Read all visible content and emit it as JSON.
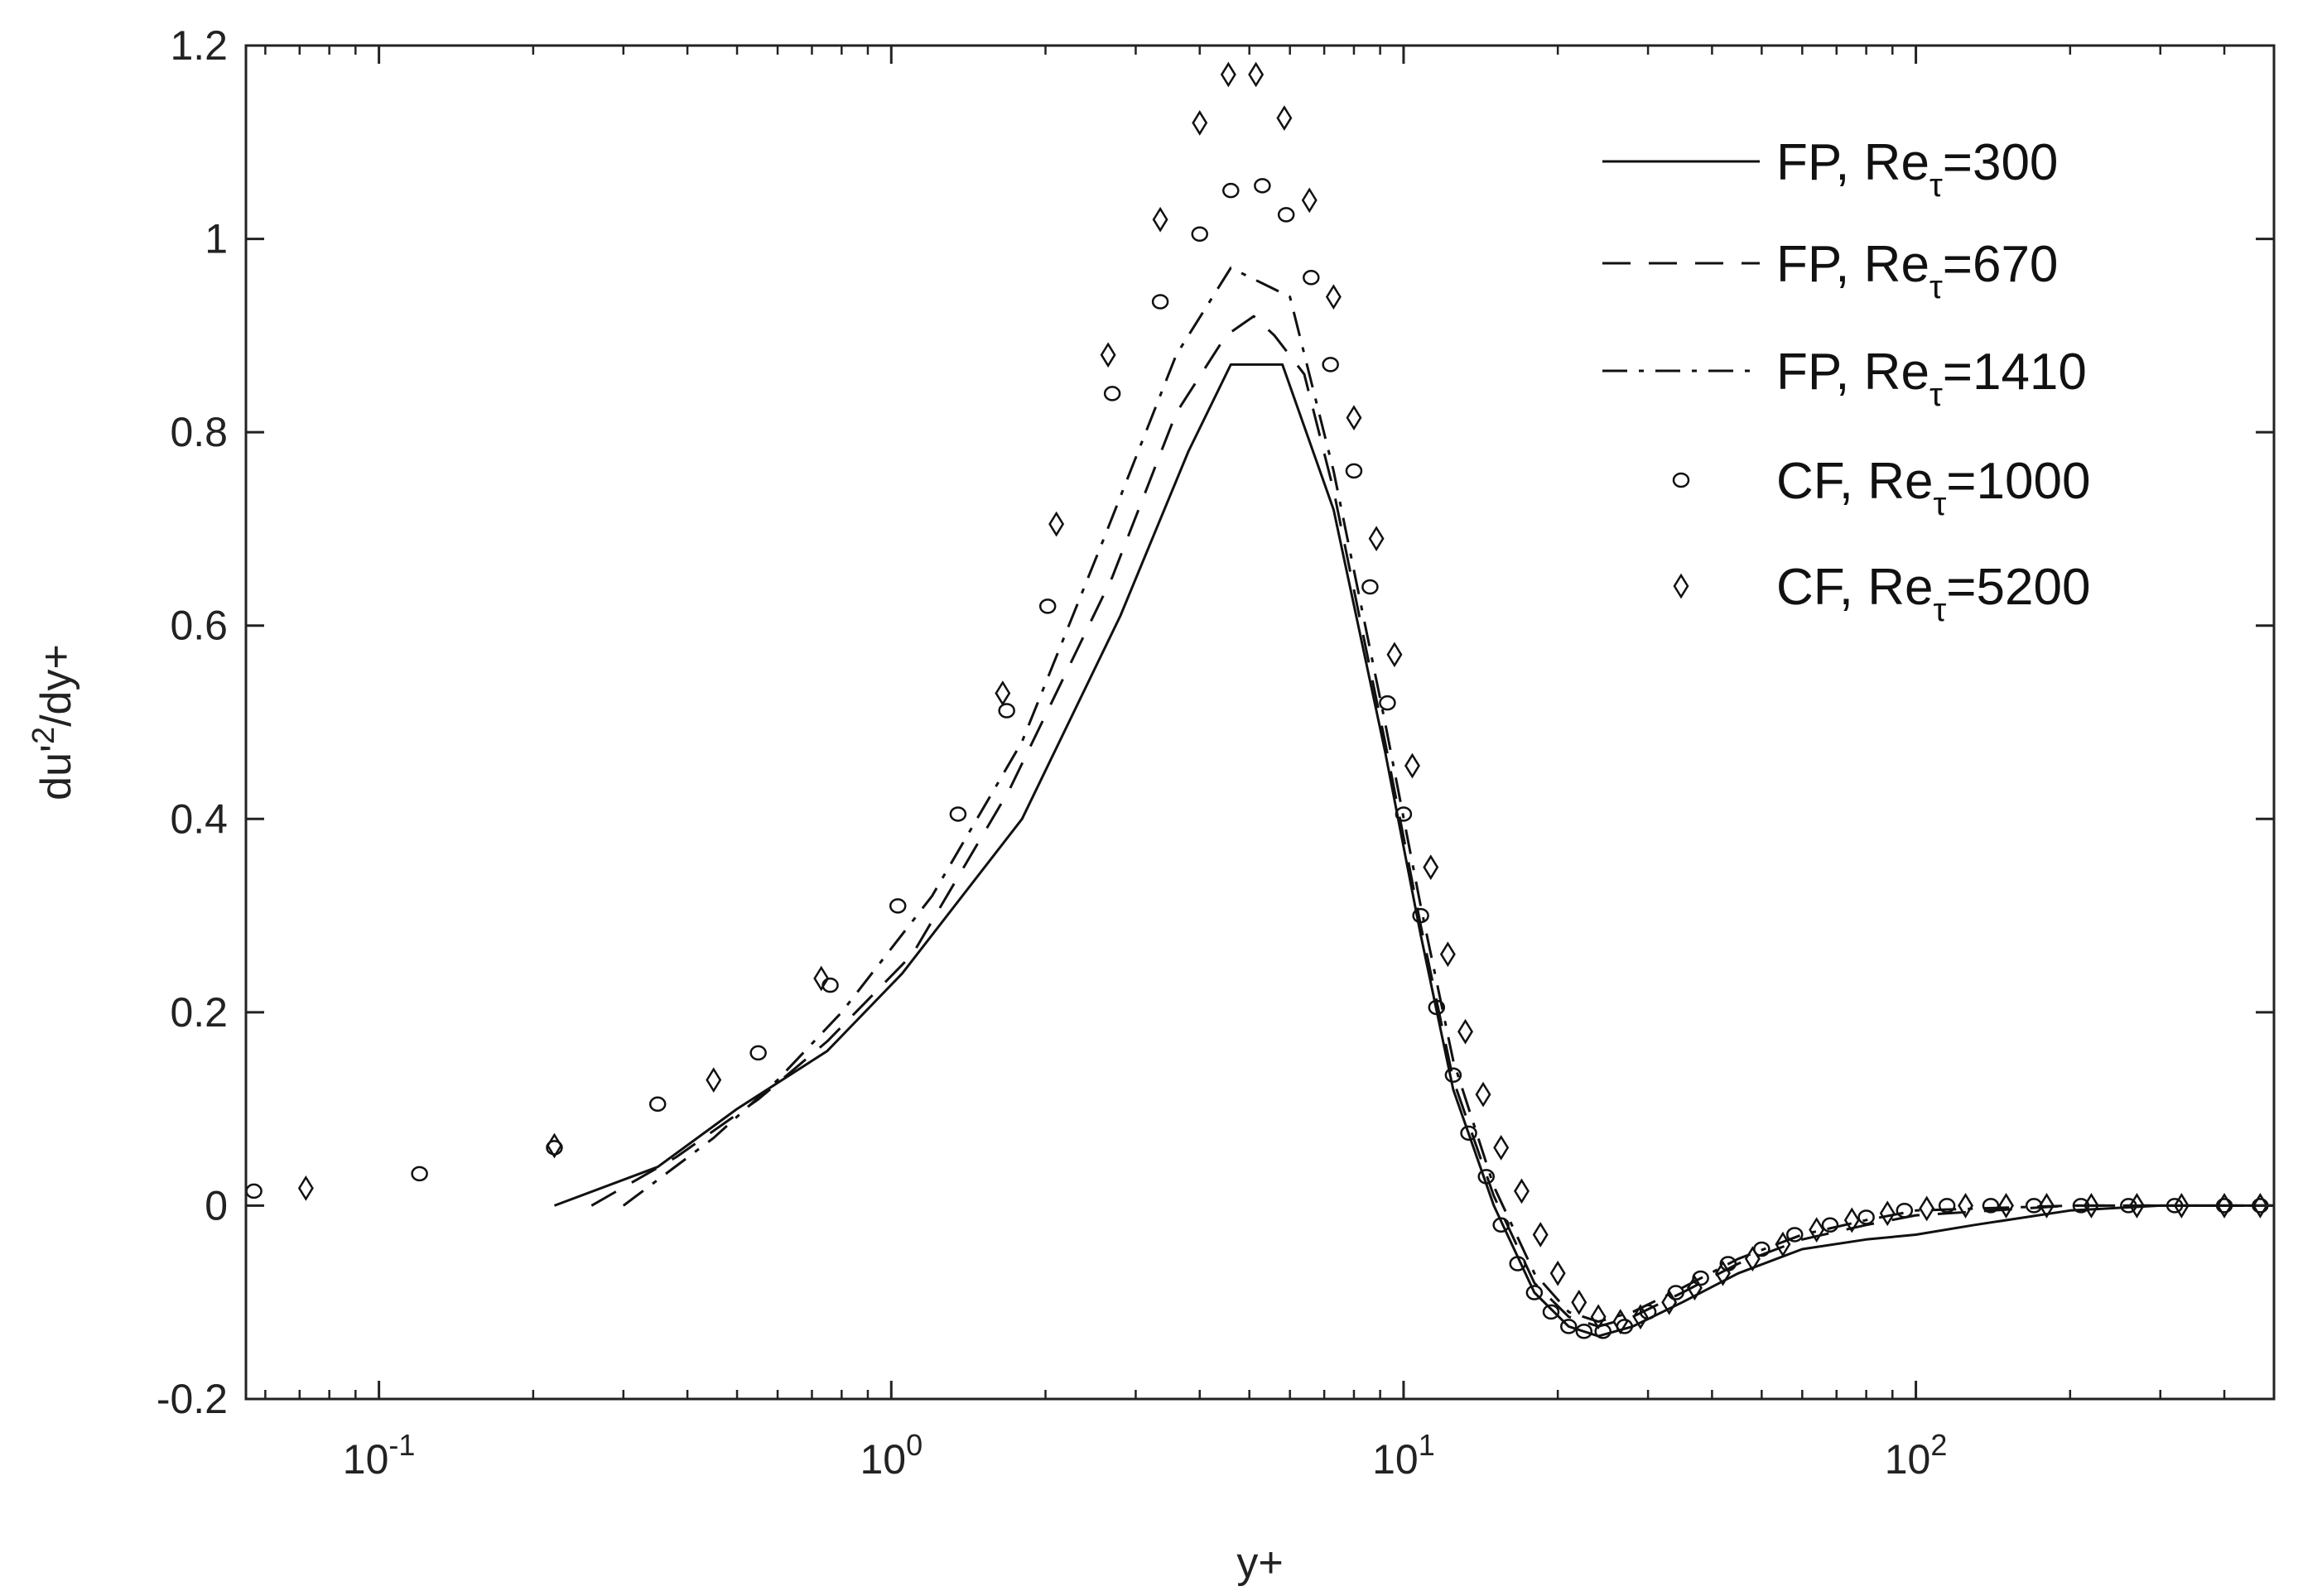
{
  "chart_data": {
    "type": "line",
    "title": "",
    "xlabel": "y+",
    "ylabel": "du'2/dy+",
    "xscale": "log",
    "xlim": [
      0.055,
      500
    ],
    "ylim": [
      -0.2,
      1.2
    ],
    "grid": false,
    "legend_position": "top-right",
    "y_ticks": [
      "-0.2",
      "0",
      "0.2",
      "0.4",
      "0.6",
      "0.8",
      "1",
      "1.2"
    ],
    "y_tick_values": [
      -0.2,
      0,
      0.2,
      0.4,
      0.6,
      0.8,
      1.0,
      1.2
    ],
    "x_ticks": [
      {
        "value": 0.1,
        "base": "10",
        "exp": "-1"
      },
      {
        "value": 1,
        "base": "10",
        "exp": "0"
      },
      {
        "value": 10,
        "base": "10",
        "exp": "1"
      },
      {
        "value": 100,
        "base": "10",
        "exp": "2"
      }
    ],
    "series": [
      {
        "name": "FP, Reτ=300",
        "legend_main": "FP, Re",
        "legend_sub": "τ",
        "legend_value": "=300",
        "style": "solid",
        "x": [
          0.22,
          0.35,
          0.5,
          0.75,
          1.05,
          1.8,
          2.8,
          3.8,
          4.6,
          5.8,
          7.3,
          9.2,
          10.8,
          12.5,
          15,
          18,
          21,
          24,
          28,
          35,
          45,
          60,
          80,
          100,
          130,
          200,
          300,
          500
        ],
        "y": [
          0.0,
          0.04,
          0.1,
          0.16,
          0.24,
          0.4,
          0.61,
          0.78,
          0.87,
          0.87,
          0.72,
          0.47,
          0.28,
          0.12,
          0.0,
          -0.09,
          -0.125,
          -0.135,
          -0.125,
          -0.1,
          -0.07,
          -0.045,
          -0.035,
          -0.03,
          -0.02,
          -0.005,
          0.0,
          0.0
        ]
      },
      {
        "name": "FP, Reτ=670",
        "legend_main": "FP, Re",
        "legend_sub": "τ",
        "legend_value": "=670",
        "style": "dashed",
        "x": [
          0.26,
          0.38,
          0.55,
          0.75,
          1.1,
          1.7,
          2.7,
          3.6,
          4.5,
          5.1,
          5.6,
          6.4,
          7.3,
          9.2,
          10.8,
          12.5,
          15,
          18,
          21,
          24,
          28,
          35,
          45,
          60,
          80,
          100,
          200,
          300,
          500
        ],
        "y": [
          0.0,
          0.05,
          0.11,
          0.17,
          0.26,
          0.43,
          0.65,
          0.82,
          0.9,
          0.92,
          0.9,
          0.86,
          0.74,
          0.48,
          0.29,
          0.13,
          0.01,
          -0.08,
          -0.115,
          -0.125,
          -0.115,
          -0.09,
          -0.06,
          -0.035,
          -0.02,
          -0.01,
          0.0,
          0.0,
          0.0
        ]
      },
      {
        "name": "FP, Reτ=1410",
        "legend_main": "FP, Re",
        "legend_sub": "τ",
        "legend_value": "=1410",
        "style": "dashdot",
        "x": [
          0.3,
          0.45,
          0.6,
          0.8,
          1.2,
          1.8,
          2.6,
          3.6,
          4.6,
          6.0,
          7.3,
          9.2,
          10.8,
          12.5,
          15,
          18,
          21,
          24,
          28,
          35,
          45,
          60,
          80,
          100,
          200,
          300,
          500
        ],
        "y": [
          0.0,
          0.07,
          0.13,
          0.2,
          0.32,
          0.48,
          0.69,
          0.88,
          0.97,
          0.94,
          0.76,
          0.5,
          0.31,
          0.15,
          0.02,
          -0.07,
          -0.11,
          -0.12,
          -0.11,
          -0.085,
          -0.055,
          -0.03,
          -0.015,
          -0.005,
          0.0,
          0.0,
          0.0
        ]
      },
      {
        "name": "CF, Reτ=1000",
        "legend_main": "CF, Re",
        "legend_sub": "τ",
        "legend_value": "=1000",
        "style": "circle",
        "x": [
          0.057,
          0.12,
          0.22,
          0.35,
          0.55,
          0.76,
          1.03,
          1.35,
          1.68,
          2.02,
          2.7,
          3.35,
          4.0,
          4.6,
          5.3,
          5.9,
          6.6,
          7.2,
          8.0,
          8.6,
          9.3,
          10.0,
          10.8,
          11.6,
          12.5,
          13.4,
          14.5,
          15.5,
          16.7,
          18,
          19.4,
          21,
          22.5,
          24.5,
          27,
          30,
          34,
          38,
          43,
          50,
          58,
          68,
          80,
          95,
          115,
          140,
          170,
          210,
          260,
          320,
          400,
          470
        ],
        "y": [
          0.015,
          0.033,
          0.06,
          0.105,
          0.158,
          0.228,
          0.31,
          0.405,
          0.512,
          0.62,
          0.84,
          0.935,
          1.005,
          1.05,
          1.055,
          1.025,
          0.96,
          0.87,
          0.76,
          0.64,
          0.52,
          0.405,
          0.3,
          0.205,
          0.135,
          0.075,
          0.03,
          -0.02,
          -0.06,
          -0.09,
          -0.11,
          -0.125,
          -0.13,
          -0.13,
          -0.125,
          -0.11,
          -0.09,
          -0.075,
          -0.06,
          -0.045,
          -0.03,
          -0.02,
          -0.012,
          -0.005,
          0.0,
          0.0,
          0.0,
          0.0,
          0.0,
          0.0,
          0.0,
          0.0
        ]
      },
      {
        "name": "CF, Reτ=5200",
        "legend_main": "CF, Re",
        "legend_sub": "τ",
        "legend_value": "=5200",
        "style": "diamond",
        "x": [
          0.072,
          0.22,
          0.45,
          0.73,
          1.65,
          2.1,
          2.65,
          3.35,
          4.0,
          4.55,
          5.15,
          5.85,
          6.55,
          7.3,
          8.0,
          8.85,
          9.6,
          10.4,
          11.3,
          12.2,
          13.2,
          14.3,
          15.5,
          17,
          18.5,
          20,
          22,
          24,
          26.5,
          29,
          33,
          37,
          42,
          48,
          55,
          64,
          75,
          88,
          105,
          125,
          150,
          180,
          220,
          270,
          330,
          400,
          470
        ],
        "y": [
          0.018,
          0.062,
          0.13,
          0.235,
          0.53,
          0.705,
          0.88,
          1.02,
          1.12,
          1.17,
          1.17,
          1.125,
          1.04,
          0.94,
          0.815,
          0.69,
          0.57,
          0.455,
          0.35,
          0.26,
          0.18,
          0.115,
          0.06,
          0.015,
          -0.03,
          -0.07,
          -0.1,
          -0.115,
          -0.12,
          -0.115,
          -0.1,
          -0.085,
          -0.07,
          -0.055,
          -0.04,
          -0.025,
          -0.015,
          -0.008,
          -0.003,
          0.0,
          0.0,
          0.0,
          0.0,
          0.0,
          0.0,
          0.0,
          0.0
        ]
      }
    ]
  }
}
